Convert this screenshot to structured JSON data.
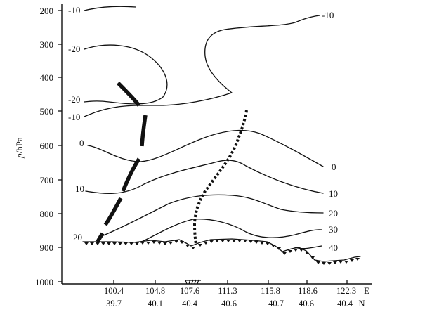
{
  "y_axis": {
    "title_italic": "p",
    "title_unit": "/hPa",
    "ticks": [
      "200",
      "300",
      "400",
      "500",
      "600",
      "700",
      "800",
      "900",
      "1000"
    ]
  },
  "x_axis": {
    "longitudes": [
      "100.4",
      "104.8",
      "107.6",
      "111.3",
      "115.8",
      "118.6",
      "122.3"
    ],
    "latitudes": [
      "39.7",
      "40.1",
      "40.4",
      "40.6",
      "40.7",
      "40.6",
      "40.4"
    ],
    "lon_unit": "E",
    "lat_unit": "N"
  },
  "contour_labels": [
    {
      "text": "-10"
    },
    {
      "text": "-10"
    },
    {
      "text": "-20"
    },
    {
      "text": "-20"
    },
    {
      "text": "-10"
    },
    {
      "text": "0"
    },
    {
      "text": "0"
    },
    {
      "text": "10"
    },
    {
      "text": "10"
    },
    {
      "text": "20"
    },
    {
      "text": "20"
    },
    {
      "text": "30"
    },
    {
      "text": "40"
    }
  ]
}
